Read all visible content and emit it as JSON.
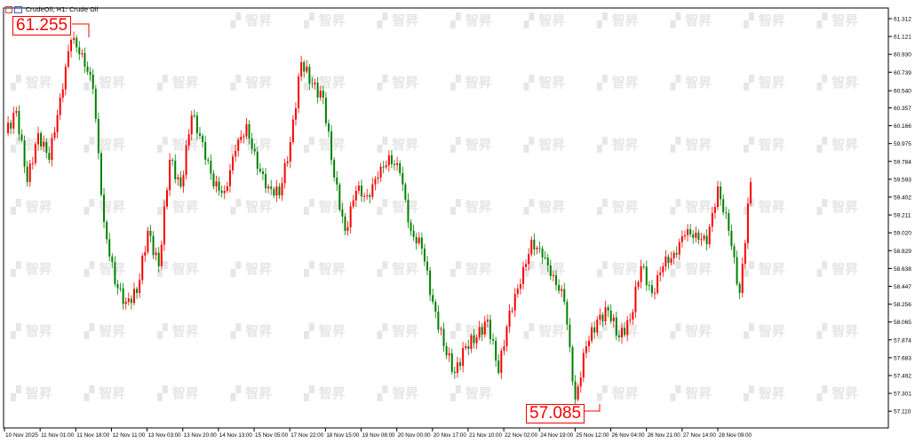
{
  "header": {
    "title": "CrudeOil, H1:  Crude Oil"
  },
  "watermark": "智昇",
  "markers": {
    "high": "61.255",
    "low": "57.085"
  },
  "colors": {
    "up": "#ff0000",
    "down": "#008000",
    "marker": "#ff0000",
    "axis": "#000000"
  },
  "chart_data": {
    "type": "candlestick",
    "title": "CrudeOil, H1:  Crude Oil",
    "ylim": [
      57.0,
      61.4
    ],
    "grid": false,
    "y_ticks": [
      "61.312",
      "61.121",
      "60.930",
      "60.739",
      "60.540",
      "60.357",
      "60.166",
      "59.975",
      "59.784",
      "59.593",
      "59.402",
      "59.211",
      "59.020",
      "58.829",
      "58.638",
      "58.447",
      "58.256",
      "58.065",
      "57.874",
      "57.683",
      "57.492",
      "57.301",
      "57.110"
    ],
    "x_ticks": [
      "10 Nov 2025",
      "11 Nov 01:00",
      "11 Nov 18:00",
      "12 Nov 11:00",
      "13 Nov 03:00",
      "13 Nov 20:00",
      "14 Nov 13:00",
      "15 Nov 05:00",
      "17 Nov 22:00",
      "18 Nov 15:00",
      "19 Nov 08:00",
      "20 Nov 00:00",
      "20 Nov 17:00",
      "21 Nov 10:00",
      "22 Nov 02:00",
      "24 Nov 19:00",
      "25 Nov 12:00",
      "26 Nov 04:00",
      "26 Nov 21:00",
      "27 Nov 14:00",
      "28 Nov 09:00"
    ],
    "close_path": [
      60.086,
      60.324,
      59.564,
      60.086,
      59.801,
      60.466,
      61.084,
      60.941,
      60.561,
      59.136,
      58.471,
      58.281,
      58.376,
      59.041,
      58.661,
      59.801,
      59.516,
      60.276,
      59.991,
      59.516,
      59.469,
      59.896,
      60.181,
      59.706,
      59.516,
      59.421,
      59.991,
      60.846,
      60.609,
      60.466,
      59.611,
      59.041,
      59.469,
      59.421,
      59.611,
      59.849,
      59.659,
      59.041,
      58.851,
      58.281,
      57.806,
      57.521,
      57.806,
      57.901,
      58.091,
      57.521,
      58.186,
      58.471,
      58.946,
      58.756,
      58.566,
      58.281,
      57.236,
      57.806,
      58.091,
      58.186,
      57.901,
      58.091,
      58.661,
      58.376,
      58.661,
      58.804,
      58.994,
      59.022,
      58.899,
      59.516,
      59.041,
      58.376,
      59.564
    ],
    "high": 61.255,
    "low": 57.085
  }
}
